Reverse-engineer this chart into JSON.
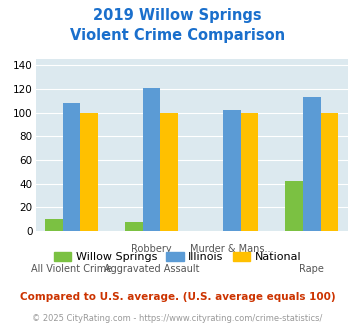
{
  "title_line1": "2019 Willow Springs",
  "title_line2": "Violent Crime Comparison",
  "x_labels_top": [
    "",
    "Robbery",
    "Murder & Mans...",
    ""
  ],
  "x_labels_bot": [
    "All Violent Crime",
    "Aggravated Assault",
    "",
    "Rape"
  ],
  "willow_springs": [
    10,
    8,
    0,
    42
  ],
  "willow_springs_null": [
    false,
    false,
    true,
    false
  ],
  "illinois": [
    108,
    121,
    102,
    113
  ],
  "national": [
    100,
    100,
    100,
    100
  ],
  "colors": {
    "willow_springs": "#7bc142",
    "illinois": "#5b9bd5",
    "national": "#ffc000"
  },
  "ylim": [
    0,
    145
  ],
  "yticks": [
    0,
    20,
    40,
    60,
    80,
    100,
    120,
    140
  ],
  "title_color": "#1a6fcc",
  "footnote": "Compared to U.S. average. (U.S. average equals 100)",
  "footnote_color": "#cc3300",
  "copyright": "© 2025 CityRating.com - https://www.cityrating.com/crime-statistics/",
  "copyright_color": "#999999",
  "plot_bg": "#dce9ef",
  "legend_labels": [
    "Willow Springs",
    "Illinois",
    "National"
  ]
}
